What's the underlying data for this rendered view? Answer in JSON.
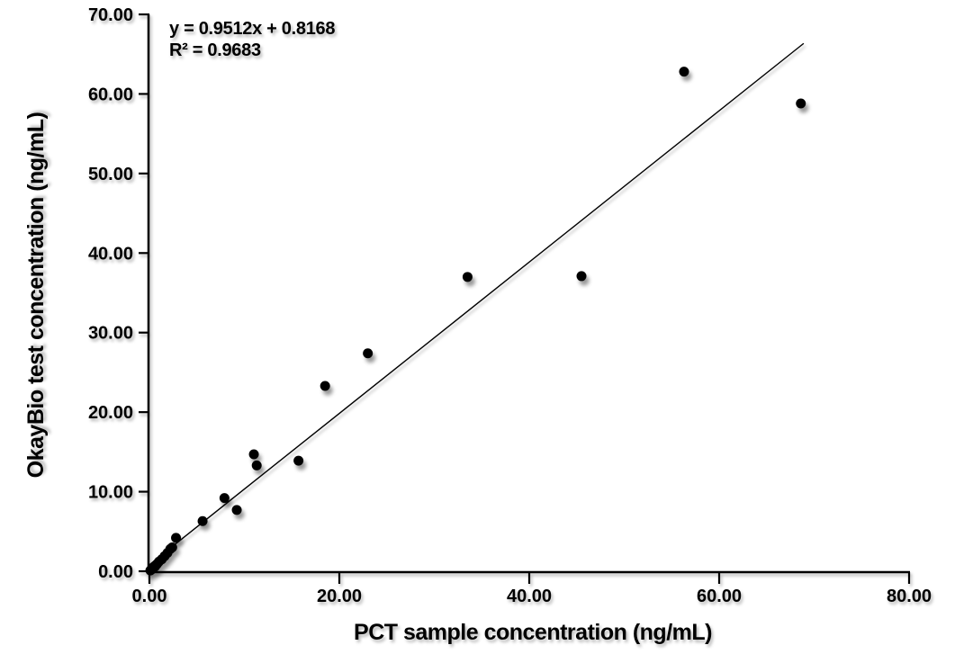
{
  "chart_data": {
    "type": "scatter",
    "title": "",
    "xlabel": "PCT sample concentration (ng/mL)",
    "ylabel": "OkayBio test concentration (ng/mL)",
    "equation": "y = 0.9512x + 0.8168",
    "r_squared": "R² = 0.9683",
    "xlim": [
      0,
      80
    ],
    "ylim": [
      0,
      70
    ],
    "x_ticks": [
      0,
      20,
      40,
      60,
      80
    ],
    "x_tick_labels": [
      "0.00",
      "20.00",
      "40.00",
      "60.00",
      "80.00"
    ],
    "y_ticks": [
      0,
      10,
      20,
      30,
      40,
      50,
      60,
      70
    ],
    "y_tick_labels": [
      "0.00",
      "10.00",
      "20.00",
      "30.00",
      "40.00",
      "50.00",
      "60.00",
      "70.00"
    ],
    "grid": false,
    "legend": "none",
    "points": [
      [
        0.1,
        0.1
      ],
      [
        0.2,
        0.2
      ],
      [
        0.4,
        0.4
      ],
      [
        0.6,
        0.6
      ],
      [
        0.8,
        0.9
      ],
      [
        1.0,
        1.2
      ],
      [
        1.3,
        1.5
      ],
      [
        1.6,
        1.9
      ],
      [
        1.9,
        2.3
      ],
      [
        2.2,
        2.8
      ],
      [
        2.4,
        3.0
      ],
      [
        2.8,
        4.2
      ],
      [
        5.6,
        6.3
      ],
      [
        7.9,
        9.2
      ],
      [
        9.2,
        7.7
      ],
      [
        11.0,
        14.7
      ],
      [
        11.3,
        13.3
      ],
      [
        15.7,
        13.9
      ],
      [
        18.5,
        23.3
      ],
      [
        23.0,
        27.4
      ],
      [
        33.5,
        37.0
      ],
      [
        45.5,
        37.1
      ],
      [
        56.3,
        62.8
      ],
      [
        68.6,
        58.8
      ]
    ],
    "trendline": {
      "slope": 0.9512,
      "intercept": 0.8168,
      "x_start": 0,
      "x_end": 68.9
    },
    "colors": {
      "marker": "#000000",
      "trendline": "#000000",
      "axis": "#000000",
      "text": "#000000",
      "background": "#ffffff"
    }
  }
}
